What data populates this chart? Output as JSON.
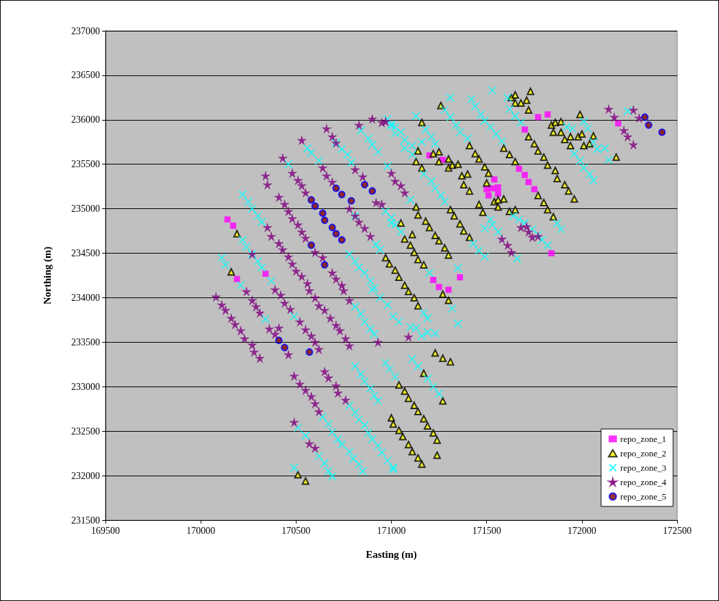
{
  "chart_data": {
    "type": "scatter",
    "xlabel": "Easting (m)",
    "ylabel": "Northing (m)",
    "xlim": [
      169500,
      172500
    ],
    "xticks": [
      169500,
      170000,
      170500,
      171000,
      171500,
      172000,
      172500
    ],
    "ylim": [
      231500,
      237000
    ],
    "yticks": [
      231500,
      232000,
      232500,
      233000,
      233500,
      234000,
      234500,
      235000,
      235500,
      236000,
      236500,
      237000
    ],
    "grid": "y",
    "legend": "bottom right",
    "series": [
      {
        "name": "repo_zone_1",
        "color": "#ff00ff",
        "marker": "square",
        "x": [
          170140,
          170170,
          170340,
          170190,
          171200,
          171270,
          171770,
          171820,
          171700,
          172190,
          171540,
          171500,
          171530,
          171560,
          171510,
          171560,
          171670,
          171700,
          171720,
          171750,
          171840,
          171220,
          171250,
          171300,
          171360
        ],
        "values": [
          234880,
          234810,
          234270,
          234210,
          235600,
          235550,
          236030,
          236060,
          235890,
          235960,
          235330,
          235220,
          235230,
          235240,
          235150,
          235170,
          235450,
          235380,
          235300,
          235220,
          234500,
          234200,
          234120,
          234090,
          234230
        ]
      },
      {
        "name": "repo_zone_2",
        "color": "#ffff00",
        "marker": "triangle",
        "x": [
          171260,
          171160,
          171630,
          171650,
          171730,
          171650,
          171680,
          171710,
          171720,
          171990,
          171840,
          171860,
          171890,
          171850,
          171890,
          171910,
          171940,
          171980,
          172000,
          172060,
          171940,
          172010,
          172040,
          172180,
          171720,
          171750,
          171770,
          171800,
          171820,
          171860,
          171870,
          171910,
          171930,
          171960,
          171410,
          171440,
          171460,
          171490,
          171510,
          171500,
          171460,
          171480,
          171540,
          171560,
          171590,
          171560,
          171590,
          171620,
          171650,
          171620,
          171650,
          171770,
          171800,
          171820,
          171850,
          171140,
          171220,
          171250,
          171130,
          171160,
          171250,
          171300,
          171300,
          171320,
          171350,
          171370,
          171400,
          171380,
          171410,
          171130,
          171140,
          171180,
          171200,
          171230,
          171250,
          171280,
          171300,
          171310,
          171330,
          171360,
          171380,
          171410,
          171050,
          171110,
          171070,
          171100,
          171120,
          171140,
          171170,
          171020,
          171040,
          171070,
          171090,
          171120,
          171140,
          171270,
          171300,
          171230,
          171270,
          171310,
          171170,
          171040,
          171070,
          171090,
          171120,
          171140,
          171170,
          171190,
          171220,
          171240,
          171270,
          171000,
          171010,
          171040,
          171060,
          171090,
          171110,
          171140,
          171160,
          171240,
          170510,
          170550,
          170190,
          170160,
          170970,
          170990
        ],
        "values": [
          236160,
          235970,
          236250,
          236280,
          236320,
          236190,
          236190,
          236220,
          236110,
          236060,
          235940,
          235970,
          235980,
          235860,
          235860,
          235780,
          235810,
          235810,
          235840,
          235820,
          235710,
          235710,
          235730,
          235580,
          235810,
          235730,
          235650,
          235580,
          235490,
          235430,
          235340,
          235270,
          235200,
          235110,
          235710,
          235620,
          235560,
          235470,
          235400,
          235290,
          235050,
          234960,
          235080,
          235100,
          235110,
          235020,
          235680,
          235610,
          235530,
          234970,
          234990,
          235150,
          235070,
          234990,
          234910,
          235650,
          235620,
          235640,
          235530,
          235460,
          235530,
          235560,
          235460,
          235490,
          235500,
          235370,
          235390,
          235270,
          235200,
          235020,
          234930,
          234860,
          234790,
          234700,
          234640,
          234560,
          234480,
          234990,
          234920,
          234830,
          234750,
          234680,
          234840,
          234710,
          234660,
          234590,
          234510,
          234430,
          234370,
          234310,
          234230,
          234140,
          234070,
          234000,
          233910,
          234040,
          233970,
          233380,
          233320,
          233280,
          233150,
          233020,
          232950,
          232870,
          232790,
          232720,
          232640,
          232560,
          232480,
          232400,
          232840,
          232650,
          232580,
          232510,
          232440,
          232350,
          232270,
          232200,
          232130,
          232230,
          232010,
          231940,
          234720,
          234290,
          234450,
          234380
        ]
      },
      {
        "name": "repo_zone_3",
        "color": "#00ffff",
        "marker": "cross",
        "x": [
          170220,
          170250,
          170270,
          170300,
          170320,
          170220,
          170240,
          170270,
          170300,
          170320,
          170370,
          170210,
          170110,
          170130,
          170460,
          170560,
          170580,
          170620,
          170710,
          170740,
          170770,
          170790,
          170840,
          170880,
          170900,
          170930,
          170980,
          170980,
          171000,
          171020,
          170810,
          170920,
          170940,
          170970,
          171000,
          171020,
          170780,
          170810,
          170830,
          170860,
          170890,
          170910,
          170340,
          170490,
          170810,
          170840,
          170860,
          170890,
          170910,
          170900,
          170940,
          170980,
          171010,
          170810,
          170840,
          170860,
          170890,
          170910,
          170930,
          170970,
          170990,
          171020,
          170780,
          170810,
          170830,
          170860,
          170880,
          170900,
          170930,
          170950,
          170980,
          171010,
          170640,
          170670,
          170690,
          170720,
          170740,
          170780,
          170800,
          170830,
          170850,
          170510,
          170550,
          170620,
          170650,
          170670,
          170690,
          170490,
          171530,
          171310,
          171420,
          171440,
          171470,
          171490,
          171520,
          171550,
          171580,
          171610,
          171620,
          171650,
          171680,
          171280,
          171310,
          171340,
          171360,
          171400,
          171130,
          171180,
          171210,
          171230,
          171020,
          171050,
          171070,
          171110,
          171070,
          171110,
          171160,
          171000,
          171920,
          171950,
          172010,
          172030,
          172060,
          171960,
          171990,
          172010,
          172040,
          172060,
          172080,
          172120,
          172140,
          172240,
          171170,
          171210,
          171230,
          171260,
          171280,
          171100,
          171000,
          171050,
          171520,
          171530,
          171560,
          171490,
          171430,
          171460,
          171490,
          171660,
          171640,
          171670,
          171700,
          171740,
          171770,
          171790,
          171820,
          171870,
          171890,
          171200,
          171350,
          171320,
          171350,
          171170,
          171190,
          171040,
          171100,
          171130,
          171160,
          171190,
          171230,
          171110,
          171140,
          171190,
          171220,
          171250,
          171010
        ],
        "values": [
          235160,
          235080,
          235000,
          234920,
          234850,
          234650,
          234570,
          234490,
          234410,
          234340,
          234190,
          234140,
          234450,
          234370,
          235500,
          235680,
          235630,
          235540,
          235740,
          235670,
          235610,
          235520,
          235880,
          235790,
          235720,
          235640,
          235480,
          236010,
          235930,
          235850,
          234920,
          234600,
          234540,
          234970,
          234900,
          234820,
          234490,
          234410,
          234340,
          234280,
          234190,
          234110,
          233760,
          233790,
          233900,
          233820,
          233730,
          233650,
          233590,
          234090,
          234000,
          233920,
          233790,
          233230,
          233140,
          233060,
          232980,
          232900,
          232840,
          233270,
          233200,
          233110,
          232790,
          232710,
          232630,
          232570,
          232480,
          232410,
          232340,
          232260,
          232170,
          232090,
          232660,
          232580,
          232490,
          232410,
          232350,
          232270,
          232190,
          232130,
          232050,
          232540,
          232450,
          232220,
          232140,
          232050,
          231990,
          232090,
          236330,
          236250,
          236230,
          236150,
          236060,
          235990,
          235920,
          235840,
          235760,
          236250,
          236120,
          236040,
          235970,
          236110,
          236030,
          235940,
          235860,
          235790,
          236040,
          235890,
          235810,
          235730,
          235920,
          235860,
          235770,
          235710,
          235680,
          235610,
          235750,
          235950,
          235920,
          235900,
          235980,
          235900,
          235750,
          235620,
          235540,
          235460,
          235390,
          235320,
          235670,
          235680,
          235550,
          236100,
          235390,
          235310,
          235230,
          235150,
          235080,
          235100,
          234840,
          234740,
          234880,
          234820,
          234740,
          234780,
          234610,
          234530,
          234460,
          234440,
          234920,
          234880,
          234840,
          234770,
          234710,
          234650,
          234590,
          234840,
          234770,
          234280,
          234330,
          233880,
          233710,
          233830,
          233770,
          233730,
          233670,
          233660,
          233570,
          233610,
          233600,
          233310,
          233230,
          233090,
          233000,
          232920,
          232070
        ]
      },
      {
        "name": "repo_zone_4",
        "color": "#800080",
        "marker": "star",
        "x": [
          170080,
          170110,
          170130,
          170160,
          170180,
          170210,
          170230,
          170270,
          170280,
          170310,
          170240,
          170270,
          170290,
          170310,
          170360,
          170390,
          170410,
          170460,
          170390,
          170420,
          170440,
          170470,
          170520,
          170550,
          170580,
          170600,
          170620,
          170750,
          170780,
          170570,
          170600,
          170620,
          170650,
          170680,
          170710,
          170730,
          170760,
          170780,
          170930,
          170490,
          170520,
          170550,
          170580,
          170600,
          170620,
          170650,
          170670,
          170710,
          170720,
          170760,
          170490,
          170570,
          170600,
          170270,
          170350,
          170370,
          170410,
          170430,
          170460,
          170480,
          170500,
          170530,
          170560,
          170340,
          170350,
          170410,
          170440,
          170460,
          170480,
          170510,
          170530,
          170550,
          170600,
          170640,
          170690,
          170710,
          170740,
          170430,
          170480,
          170510,
          170530,
          170550,
          170530,
          170640,
          170660,
          170690,
          170780,
          170810,
          170830,
          170860,
          170890,
          170660,
          170690,
          170710,
          170810,
          170850,
          170920,
          170950,
          170830,
          170900,
          170950,
          170970,
          171000,
          171020,
          171050,
          171070,
          172140,
          172170,
          172220,
          172240,
          172270,
          172300,
          172270,
          171680,
          171710,
          171720,
          171740,
          171770,
          171580,
          171610,
          171630,
          171090
        ],
        "values": [
          234010,
          233920,
          233860,
          233770,
          233700,
          233630,
          233540,
          233470,
          233390,
          233320,
          234070,
          233970,
          233900,
          233830,
          233650,
          233590,
          233660,
          233360,
          234090,
          234030,
          233940,
          233870,
          233730,
          233640,
          233570,
          233500,
          233420,
          234080,
          233970,
          234080,
          234000,
          233910,
          233860,
          233770,
          233690,
          233630,
          233540,
          233460,
          233500,
          233120,
          233030,
          232960,
          232890,
          232810,
          232720,
          233170,
          233100,
          233010,
          232930,
          232850,
          232600,
          232360,
          232310,
          234490,
          234790,
          234690,
          234610,
          234540,
          234460,
          234380,
          234300,
          234240,
          234160,
          235370,
          235270,
          235130,
          235050,
          234970,
          234890,
          234820,
          234740,
          234670,
          234510,
          234450,
          234280,
          234210,
          234140,
          235570,
          235400,
          235320,
          235260,
          235180,
          235770,
          235460,
          235370,
          235300,
          235000,
          234920,
          234850,
          234780,
          234690,
          235900,
          235810,
          235740,
          235440,
          235360,
          235070,
          235050,
          235940,
          236010,
          235970,
          235980,
          235400,
          235310,
          235260,
          235180,
          236120,
          236030,
          235880,
          235810,
          236110,
          236020,
          235720,
          234790,
          234800,
          234740,
          234680,
          234690,
          234660,
          234590,
          234510,
          233560
        ]
      },
      {
        "name": "repo_zone_5",
        "color": "#800000",
        "marker": "circle",
        "x": [
          170710,
          170740,
          170580,
          170600,
          170640,
          170650,
          170690,
          170710,
          170740,
          170580,
          170650,
          170790,
          170860,
          170900,
          170410,
          170440,
          170570,
          172330,
          172350,
          172420
        ],
        "values": [
          235230,
          235160,
          235100,
          235030,
          234950,
          234870,
          234790,
          234720,
          234650,
          234590,
          234370,
          235090,
          235270,
          235200,
          233520,
          233440,
          233390,
          236030,
          235940,
          235860
        ]
      }
    ]
  }
}
